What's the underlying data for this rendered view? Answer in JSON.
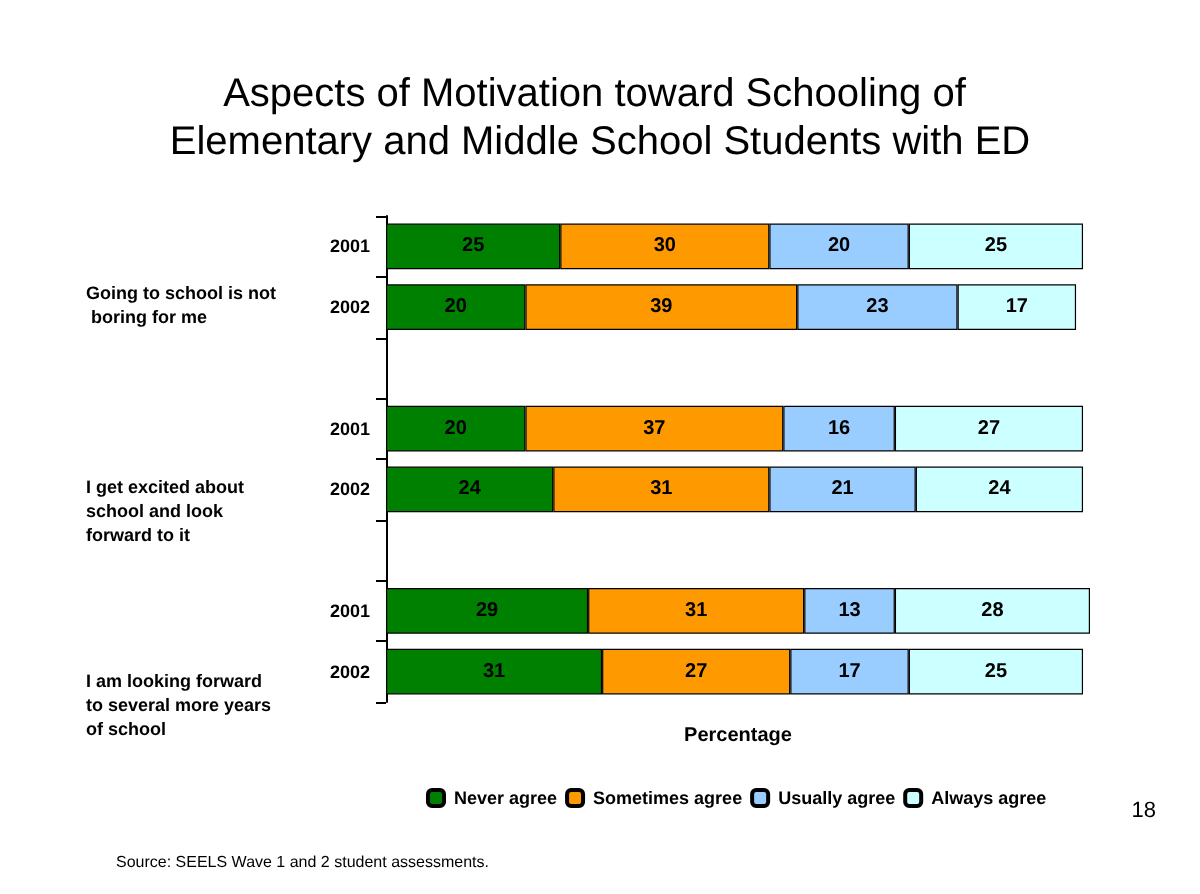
{
  "chart_data": {
    "type": "bar",
    "orientation": "horizontal",
    "stacked": true,
    "title": "Aspects of Motivation toward Schooling of Elementary and Middle School Students with ED",
    "xlabel": "Percentage",
    "categories": [
      "2001",
      "2002",
      null,
      "2001",
      "2002",
      null,
      "2001",
      "2002"
    ],
    "series": [
      {
        "name": "Never agree",
        "color": "#008000",
        "values": [
          25,
          20,
          null,
          20,
          24,
          null,
          29,
          31
        ]
      },
      {
        "name": "Sometimes agree",
        "color": "#ff9900",
        "values": [
          30,
          39,
          null,
          37,
          31,
          null,
          31,
          27
        ]
      },
      {
        "name": "Usually agree",
        "color": "#99ccff",
        "values": [
          20,
          23,
          null,
          16,
          21,
          null,
          13,
          17
        ]
      },
      {
        "name": "Always agree",
        "color": "#ccffff",
        "values": [
          25,
          17,
          null,
          27,
          24,
          null,
          28,
          25
        ]
      }
    ],
    "xlim": [
      0,
      101
    ],
    "tick_labels": "y",
    "data_labels": true,
    "legend": "bottom",
    "grid": false,
    "annotations": [
      "Going to school is not boring for me",
      "I get excited about school and look forward to it",
      "I am looking forward to several more years of school",
      "Source: SEELS Wave 1 and 2 student assessments.",
      "18"
    ]
  }
}
